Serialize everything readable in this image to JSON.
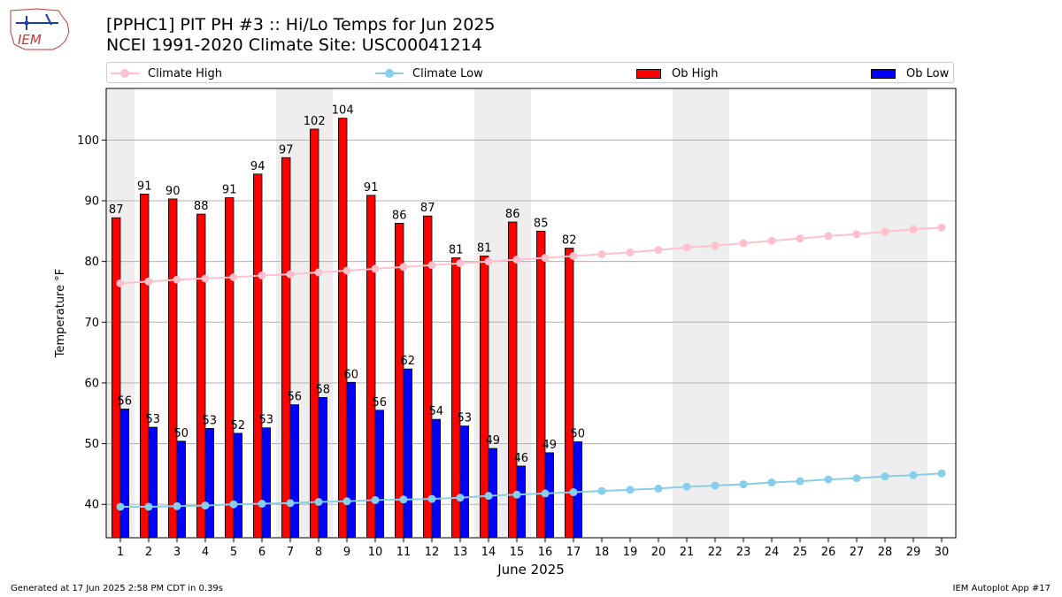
{
  "header": {
    "title_line1": "[PPHC1] PIT PH #3 :: Hi/Lo Temps for Jun 2025",
    "title_line2": "NCEI 1991-2020 Climate Site: USC00041214",
    "logo_text": "IEM"
  },
  "legend": {
    "climate_high": "Climate High",
    "climate_low": "Climate Low",
    "ob_high": "Ob High",
    "ob_low": "Ob Low"
  },
  "footer": {
    "generated": "Generated at 17 Jun 2025 2:58 PM CDT in 0.39s",
    "app": "IEM Autoplot App #17"
  },
  "colors": {
    "ob_high": "#ff0000",
    "ob_low": "#0000ff",
    "climate_high": "#ffc0cb",
    "climate_low": "#87ceeb",
    "weekend_band": "#eeeeee",
    "grid": "#b0b0b0"
  },
  "chart_data": {
    "type": "bar",
    "xlabel": "June 2025",
    "ylabel": "Temperature °F",
    "ylim": [
      34.5,
      108.5
    ],
    "xlim": [
      0.5,
      30.5
    ],
    "yticks": [
      40,
      50,
      60,
      70,
      80,
      90,
      100
    ],
    "grid": "horizontal",
    "legend_position": "top",
    "days": [
      1,
      2,
      3,
      4,
      5,
      6,
      7,
      8,
      9,
      10,
      11,
      12,
      13,
      14,
      15,
      16,
      17,
      18,
      19,
      20,
      21,
      22,
      23,
      24,
      25,
      26,
      27,
      28,
      29,
      30
    ],
    "weekend_bands": [
      [
        0.5,
        1.5
      ],
      [
        6.5,
        8.5
      ],
      [
        13.5,
        15.5
      ],
      [
        20.5,
        22.5
      ],
      [
        27.5,
        29.5
      ]
    ],
    "series": [
      {
        "name": "Ob High",
        "kind": "bar",
        "values": [
          87.2,
          91.1,
          90.3,
          87.8,
          90.5,
          94.4,
          97.1,
          101.8,
          103.6,
          90.9,
          86.3,
          87.5,
          80.6,
          80.9,
          86.5,
          85.0,
          82.2
        ]
      },
      {
        "name": "Ob Low",
        "kind": "bar",
        "values": [
          55.7,
          52.7,
          50.4,
          52.5,
          51.7,
          52.6,
          56.4,
          57.6,
          60.1,
          55.5,
          62.3,
          54.0,
          52.9,
          49.2,
          46.3,
          48.5,
          50.3
        ]
      },
      {
        "name": "Climate High",
        "kind": "line",
        "values": [
          76.4,
          76.7,
          77.0,
          77.2,
          77.4,
          77.7,
          77.9,
          78.2,
          78.5,
          78.8,
          79.1,
          79.4,
          79.7,
          80.0,
          80.3,
          80.6,
          80.9,
          81.2,
          81.5,
          81.9,
          82.3,
          82.6,
          83.0,
          83.4,
          83.8,
          84.2,
          84.5,
          84.9,
          85.3,
          85.6
        ]
      },
      {
        "name": "Climate Low",
        "kind": "line",
        "values": [
          39.6,
          39.6,
          39.7,
          39.8,
          40.0,
          40.1,
          40.2,
          40.4,
          40.5,
          40.7,
          40.8,
          40.9,
          41.1,
          41.4,
          41.6,
          41.8,
          42.0,
          42.2,
          42.4,
          42.6,
          42.9,
          43.1,
          43.3,
          43.6,
          43.8,
          44.1,
          44.3,
          44.6,
          44.8,
          45.1
        ]
      }
    ],
    "high_labels": [
      "87",
      "91",
      "90",
      "88",
      "91",
      "94",
      "97",
      "102",
      "104",
      "91",
      "86",
      "87",
      "81",
      "81",
      "86",
      "85",
      "82"
    ],
    "low_labels": [
      "56",
      "53",
      "50",
      "53",
      "52",
      "53",
      "56",
      "58",
      "60",
      "56",
      "62",
      "54",
      "53",
      "49",
      "46",
      "49",
      "50"
    ]
  }
}
